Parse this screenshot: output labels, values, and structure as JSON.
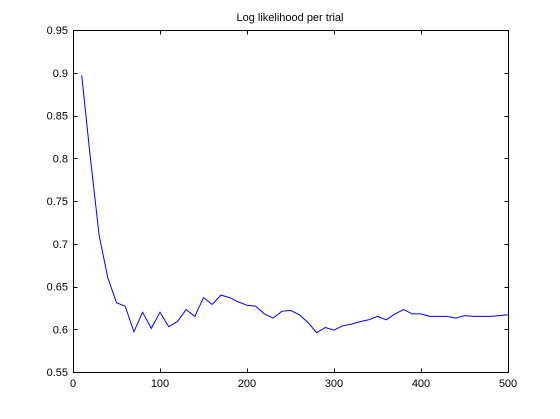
{
  "chart_data": {
    "type": "line",
    "title": "Log likelihood per trial",
    "xlabel": "",
    "ylabel": "",
    "xlim": [
      0,
      500
    ],
    "ylim": [
      0.55,
      0.95
    ],
    "xticks": [
      0,
      100,
      200,
      300,
      400,
      500
    ],
    "xtick_labels": [
      "0",
      "100",
      "200",
      "300",
      "400",
      "500"
    ],
    "yticks": [
      0.55,
      0.6,
      0.65,
      0.7,
      0.75,
      0.8,
      0.85,
      0.9,
      0.95
    ],
    "ytick_labels": [
      "0.55",
      "0.6",
      "0.65",
      "0.7",
      "0.75",
      "0.8",
      "0.85",
      "0.9",
      "0.95"
    ],
    "grid": false,
    "line_color": "#0000ff",
    "series": [
      {
        "x": [
          10,
          20,
          30,
          40,
          50,
          60,
          70,
          80,
          90,
          100,
          110,
          120,
          130,
          140,
          150,
          160,
          170,
          180,
          190,
          200,
          210,
          220,
          230,
          240,
          250,
          260,
          270,
          280,
          290,
          300,
          310,
          320,
          330,
          340,
          350,
          360,
          370,
          380,
          390,
          400,
          410,
          420,
          430,
          440,
          450,
          460,
          470,
          480,
          490,
          500
        ],
        "y": [
          0.897,
          0.8,
          0.71,
          0.66,
          0.631,
          0.627,
          0.597,
          0.62,
          0.601,
          0.62,
          0.603,
          0.609,
          0.623,
          0.615,
          0.637,
          0.629,
          0.64,
          0.637,
          0.632,
          0.628,
          0.627,
          0.618,
          0.613,
          0.621,
          0.622,
          0.617,
          0.608,
          0.596,
          0.602,
          0.599,
          0.604,
          0.606,
          0.609,
          0.611,
          0.615,
          0.611,
          0.618,
          0.623,
          0.618,
          0.618,
          0.615,
          0.615,
          0.615,
          0.613,
          0.616,
          0.615,
          0.615,
          0.615,
          0.616,
          0.617
        ]
      }
    ]
  }
}
